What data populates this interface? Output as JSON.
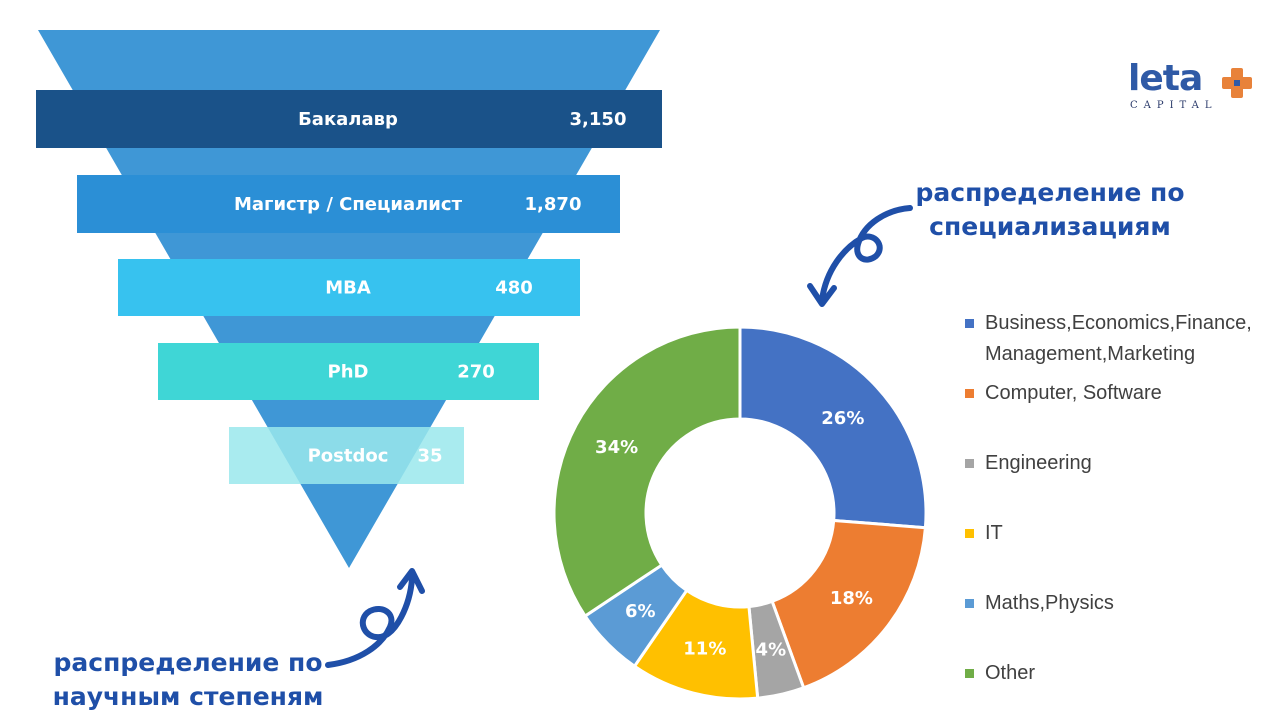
{
  "funnel": {
    "levels": [
      {
        "label": "Бакалавр",
        "value": "3,150",
        "count": 3150,
        "color": "#1a5289"
      },
      {
        "label": "Магистр / Специалист",
        "value": "1,870",
        "count": 1870,
        "color": "#2b8fd6"
      },
      {
        "label": "MBA",
        "value": "480",
        "count": 480,
        "color": "#37c2ef"
      },
      {
        "label": "PhD",
        "value": "270",
        "count": 270,
        "color": "#3fd6d6"
      },
      {
        "label": "Postdoc",
        "value": "35",
        "count": 35,
        "color": "#9ae8ec"
      }
    ],
    "triangle_color": "#3f97d6"
  },
  "captions": {
    "degrees": "распределение по\nнаучным степеням",
    "specializations": "распределение по\nспециализациям"
  },
  "logo": {
    "word": "leta",
    "sub": "CAPITAL",
    "color": "#2f5aa6",
    "accent": "#e8823a"
  },
  "chart_data": {
    "type": "pie",
    "donut": true,
    "series": [
      {
        "name": "Business,Economics,Finance,\nManagement,Marketing",
        "value": 26,
        "label": "26%",
        "color": "#4472c4"
      },
      {
        "name": "Computer, Software",
        "value": 18,
        "label": "18%",
        "color": "#ed7d31"
      },
      {
        "name": "Engineering",
        "value": 4,
        "label": "4%",
        "color": "#a5a5a5"
      },
      {
        "name": "IT",
        "value": 11,
        "label": "11%",
        "color": "#ffc000"
      },
      {
        "name": "Maths,Physics",
        "value": 6,
        "label": "6%",
        "color": "#5b9bd5"
      },
      {
        "name": "Other",
        "value": 34,
        "label": "34%",
        "color": "#70ad47"
      }
    ],
    "legend_position": "right"
  }
}
